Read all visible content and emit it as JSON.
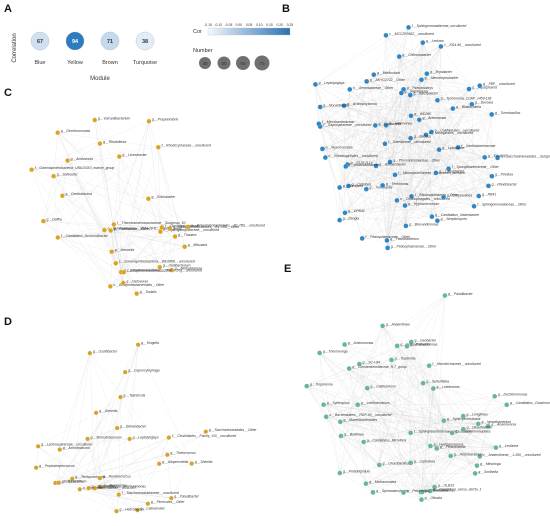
{
  "panel_letters": {
    "A": "A",
    "B": "B",
    "C": "C",
    "D": "D",
    "E": "E"
  },
  "panel_a": {
    "ylabel": "Correlation",
    "xlabel": "Module",
    "modules": [
      {
        "name": "Blue",
        "value": "67",
        "color": "#cfe0f2",
        "text_color": "#333333"
      },
      {
        "name": "Yellow",
        "value": "94",
        "color": "#2f7bbf",
        "text_color": "#ffffff"
      },
      {
        "name": "Brown",
        "value": "71",
        "color": "#c6d9ee",
        "text_color": "#333333"
      },
      {
        "name": "Turquoise",
        "value": "38",
        "color": "#e3edf8",
        "text_color": "#333333"
      }
    ],
    "cor_legend": {
      "title": "Cor",
      "ticks": [
        "-0.15",
        "-0.10",
        "-0.05",
        "0.00",
        "0.05",
        "0.10",
        "0.15",
        "0.20",
        "0.25"
      ],
      "color_low": "#f4f8fc",
      "color_high": "#2a72b5"
    },
    "number_legend": {
      "title": "Number",
      "values": [
        "40",
        "50",
        "60",
        "70"
      ]
    }
  },
  "network_colors": {
    "B": "#2f86c6",
    "C": "#d9a521",
    "D": "#d6a22a",
    "E": "#67b4a4"
  },
  "networks": {
    "B": [
      "f__Blastocatellaceae__Other",
      "g__Phormidesmiaceae__Other",
      "c__MCC2R3662__uncultured",
      "g__Rhodobacter",
      "f__Spongiibacteraceae__Other",
      "g__Stenotrophobacter",
      "g__Turicibacter",
      "f__Saprospiraceae__uncultured",
      "g__Cellvibrio",
      "g__Bdellovibrio",
      "f__Sphingomonadaceae__Other",
      "g__WD260",
      "f__Nitrosopumilaceae__uncultured_archaea",
      "g__Halomonas",
      "g__Dongia",
      "c__KD4-96__uncultured",
      "o__Caldilineales__uncultured",
      "g__OPB41",
      "f__Xanthobacteraceae",
      "g__Tychonema_CCAP_1459-11B",
      "g__Flavobacterium",
      "f__Sphingomonadaceae_uncultured",
      "g__Ramlibacter",
      "o__Rhodospirillales__uncultured",
      "g__Actinophytocola",
      "g__Brevundimonas",
      "f__Gaiellaceae__uncultured",
      "g__Kaistobacter",
      "o__Saccharimonadales__Subgroup_6",
      "g__Flavitalea",
      "g__Pedosphaeraceae__Other",
      "g__Luteolibacter",
      "g__Ellin6067",
      "o__Chitinophagales__uncultured",
      "g__Chthoniobacter",
      "g__Candidatus_Udaeobacter",
      "g__Streptomyces",
      "g__Adhaeribacter",
      "g__Pirellula",
      "o__Nitrospirales__uncultured",
      "g__Hyphomicrobium",
      "g__Bryobacter",
      "f__Pedosphaeraceae__Other",
      "g__Nocardioides",
      "g__Arenimonas",
      "g__AKYG1722__Other",
      "g__Chryseolinea",
      "g__Aquisphaera",
      "g__Tumebacillus",
      "g__Blastocatella",
      "o__Gemmataceae__Other",
      "g__RB41",
      "g__Terrimonas",
      "f__Microbacteriaceae",
      "o__Myxococcales",
      "g__FBP__uncultured",
      "g__Dokdonella",
      "g__Lentzea",
      "g__Pseudolabrys",
      "g__0319-7L14",
      "g__Bacillus",
      "g__Lysobacter",
      "g__Leptolyngbya",
      "f__Anaerolineaceae",
      "g__Devosia"
    ],
    "C": [
      "c__Gammaproteobacteria__WD2808__uncultured",
      "g__Solibacter",
      "g__Vulcaniibacterium",
      "o__Betaproteobacteriales__Other",
      "g__Sodalis",
      "o__Betaproteobacteriales__TRA3-20g__uncultured",
      "g__Mitsuaria",
      "g__Ideonella",
      "g__Variovorax",
      "f__Thermoanaerobaculaceae__Subgroup_10",
      "f__Candidatus_Accumulibacter",
      "g__Propionivibrio",
      "g__Rhodoferax",
      "g__Limnobacter",
      "f__Hydrogenophilaceae__uncultured",
      "f__Rhodocyclaceae__uncultured",
      "g__Denitratisoma",
      "g__Methylotenera",
      "o__Burkholderiales__MM4-28-f1__aquatic_group",
      "g__Dechloromonas",
      "g__Thauera",
      "g__Delftia",
      "g__Rhizobacter",
      "c__Xanthomonadales__Other",
      "g__Undibacterium",
      "f__Gammaproteobacteria_UBA10353_marine_group",
      "o__Betaproteobacteriales__B1-7BS__Other",
      "g__Halleiaceae__Other",
      "g__Acidovorax",
      "f__Comamonadaceae",
      "o__Betaproteobacteriales__B1-7BS__uncultured"
    ],
    "D": [
      "f__Saccharimonadaceae__uncultured",
      "g__Leptolyngbya",
      "c__Clostridiales__Family_XIII__uncultured",
      "g__Byssovorax",
      "o__Erysipelotrichaceae__UCG-007",
      "g__Gemella",
      "g__Tabrizicola",
      "g__Lachnospiraceae__uncultured",
      "g__Fusobacterium",
      "g__Acholeplasma",
      "g__Trichococcus",
      "g__Firmicutes__Other",
      "g__Terrisporobacter",
      "g__Paludibacter",
      "g__Peptostreptococcus",
      "g__Shinella",
      "g__Saccharimonadales__Other",
      "g__Oscillibacter",
      "g__Candidatus_Saccharimonas",
      "g__Caloramator",
      "g__Dehalobacter",
      "g__Ruminococcus",
      "g__Stomatobaculum",
      "g__Kingella",
      "g__Leptotrichia",
      "g__Helicobacter",
      "g__Capnocytophaga",
      "g__Tyzzerella",
      "g__Alloprevotella"
    ],
    "E": [
      "f__Sphingobacteriaceae__I69-7-clade",
      "c__Anaerolineae__1-356__uncultured",
      "g__Sedimentibacter",
      "g__Hydrogenispora",
      "o__Bacteroidales__RGP-60__uncultured",
      "g__Sulfuritalea",
      "g__Candidatus_Microthrix",
      "g__Saccharimonadales",
      "f__Microtrichaceae__uncultured",
      "g__OLB13",
      "g__Acetobacterium",
      "g__Luteimonas",
      "g__Spirochaeta",
      "g__Geobacter",
      "g__Proteiniphilum",
      "g__Lentimicrobium",
      "g__Bellilinea",
      "g__Anaerovorax",
      "g__Candidatus_Cloacimonas",
      "g__SC-I-84",
      "g__Longilinea",
      "g__Leptolinea",
      "g__Syntrophorhabdus",
      "g__Smithella",
      "g__Desulfovibrio",
      "g__Methanosaeta",
      "g__Thermovirga",
      "g__Ignavibacterium",
      "g__Christensenellaceae_R-7_group",
      "g__Fermentimonas",
      "g__Macellibacteroides",
      "g__Mesotoga",
      "g__Tissierella",
      "g__Paludibacter",
      "g__Clostridium_sensu_stricto_1",
      "g__Caldisericum",
      "g__Dechloromonas",
      "g__Treponema",
      "g__Aminomonas",
      "g__Sporanaerobacter",
      "g__Petrimonas",
      "g__Levilinea",
      "g__Anaerolinea",
      "g__Syntrophus",
      "g__Cloacibacillus",
      "g__Pseudomonas",
      "g__Ottowia",
      "g__Proteocatella"
    ]
  }
}
